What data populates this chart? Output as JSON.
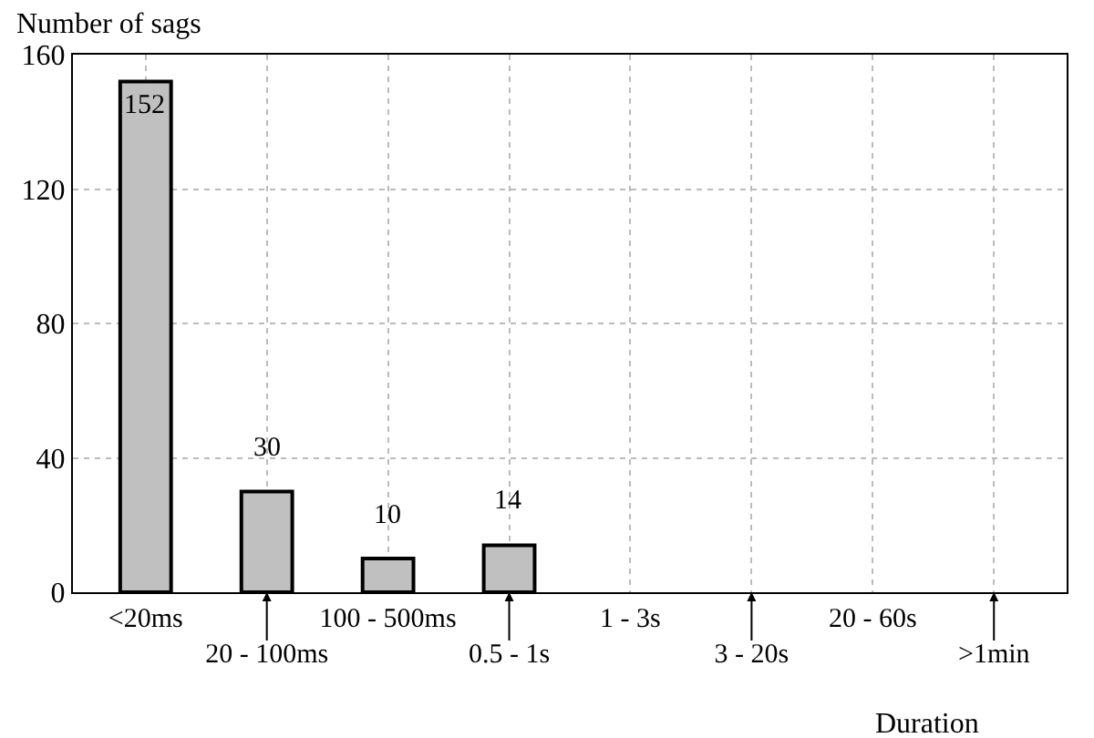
{
  "chart_data": {
    "type": "bar",
    "ylabel": "Number of sags",
    "xlabel": "Duration",
    "categories": [
      "<20ms",
      "20 - 100ms",
      "100 - 500ms",
      "0.5 - 1s",
      "1 - 3s",
      "3 - 20s",
      "20 - 60s",
      ">1min"
    ],
    "values": [
      152,
      30,
      10,
      14,
      0,
      0,
      0,
      0
    ],
    "value_labels": [
      "152",
      "30",
      "10",
      "14",
      null,
      null,
      null,
      null
    ],
    "color": "#c0c0c0",
    "ylim": [
      0,
      160
    ],
    "yticks": [
      0,
      40,
      80,
      120,
      160
    ],
    "grid": true,
    "legend": false
  }
}
